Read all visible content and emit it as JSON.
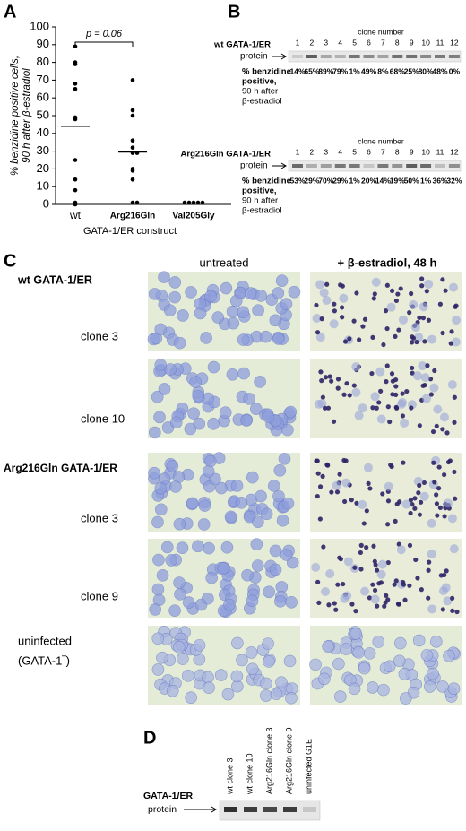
{
  "chart_data": {
    "type": "strip",
    "panel": "A",
    "ylabel_lines": [
      "% benzidine positive cells,",
      "90 h after β-estradiol"
    ],
    "xlabel": "GATA-1/ER construct",
    "annotation": "p = 0.06",
    "categories": [
      "wt",
      "Arg216Gln",
      "Val205Gly"
    ],
    "values": [
      [
        14,
        65,
        89,
        79,
        1,
        49,
        8,
        68,
        25,
        80,
        48,
        0
      ],
      [
        53,
        29,
        70,
        29,
        1,
        20,
        14,
        19,
        50,
        1,
        36,
        32
      ],
      [
        1,
        1,
        1,
        1,
        1
      ]
    ],
    "means": [
      44,
      29.5,
      null
    ],
    "color": "#000000",
    "ylim": [
      0,
      100
    ],
    "yticks": [
      0,
      10,
      20,
      30,
      40,
      50,
      60,
      70,
      80,
      90,
      100
    ]
  },
  "panel_b": {
    "letter": "B",
    "blots": [
      {
        "construct": "wt GATA-1/ER",
        "protein": "protein",
        "clone_number": "clone number",
        "clones": [
          1,
          2,
          3,
          4,
          5,
          6,
          7,
          8,
          9,
          10,
          11,
          12
        ],
        "percent_labels": [
          "14%",
          "65%",
          "89%",
          "79%",
          "1%",
          "49%",
          "8%",
          "68%",
          "25%",
          "80%",
          "48%",
          "0%"
        ],
        "caption_lines": [
          "% benzidine",
          "positive,",
          "90 h after",
          "β-estradiol"
        ]
      },
      {
        "construct": "Arg216Gln GATA-1/ER",
        "protein": "protein",
        "clone_number": "clone number",
        "clones": [
          1,
          2,
          3,
          4,
          5,
          6,
          7,
          8,
          9,
          10,
          11,
          12
        ],
        "percent_labels": [
          "53%",
          "29%",
          "70%",
          "29%",
          "1%",
          "20%",
          "14%",
          "19%",
          "50%",
          "1%",
          "36%",
          "32%"
        ],
        "caption_lines": [
          "% benzidine",
          "positive,",
          "90 h after",
          "β-estradiol"
        ]
      }
    ]
  },
  "panel_c": {
    "letter": "C",
    "columns": [
      "untreated",
      "+ β-estradiol, 48 h"
    ],
    "groups": [
      "wt GATA-1/ER",
      "Arg216Gln GATA-1/ER"
    ],
    "rows": [
      "clone 3",
      "clone 10",
      "clone 3",
      "clone 9"
    ],
    "uninfected_lines": [
      "uninfected",
      "(GATA-1‾)"
    ]
  },
  "panel_d": {
    "letter": "D",
    "protein_lines": [
      "GATA-1/ER",
      "protein"
    ],
    "lanes": [
      "wt clone 3",
      "wt clone 10",
      "Arg216Gln clone 3",
      "Arg216Gln clone 9",
      "uninfected G1E"
    ]
  }
}
